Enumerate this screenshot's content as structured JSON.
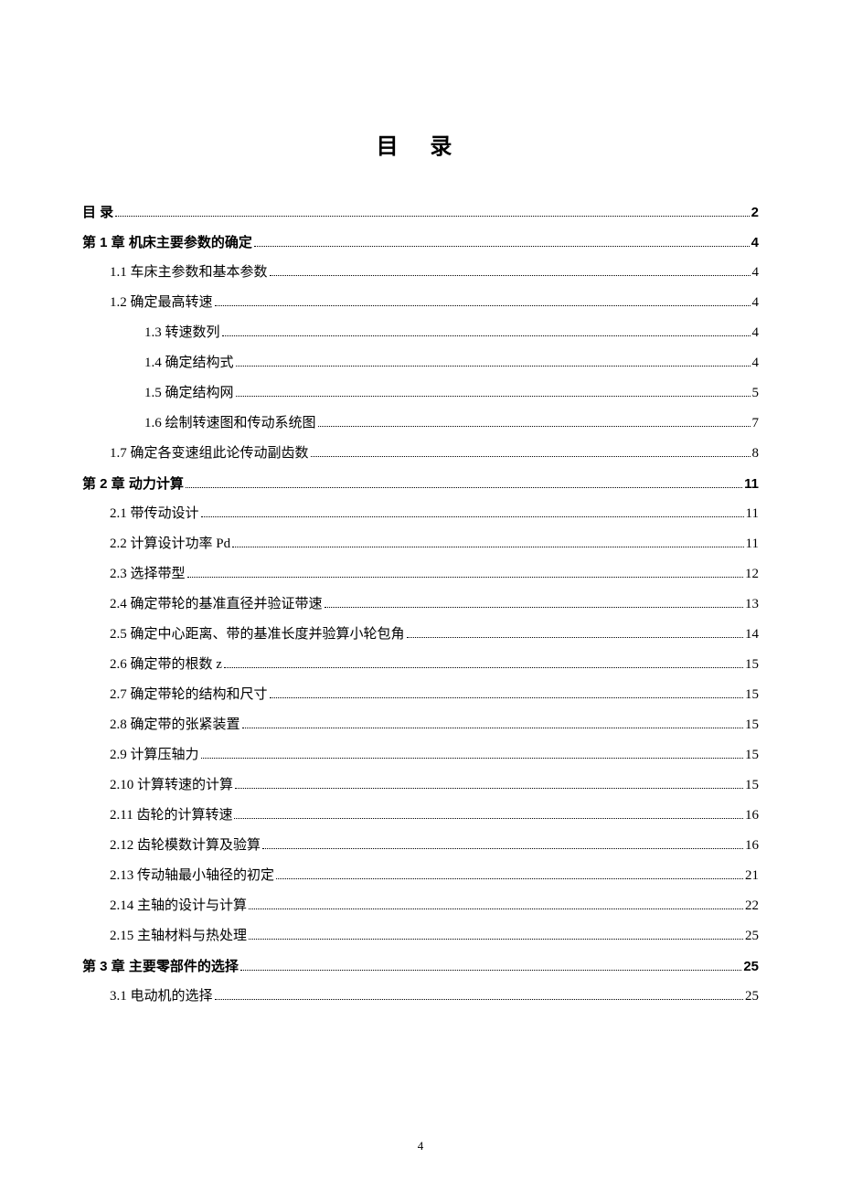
{
  "title": "目  录",
  "page_number": "4",
  "background_color": "#ffffff",
  "text_color": "#000000",
  "title_fontsize": 24,
  "body_fontsize": 15,
  "entries": [
    {
      "label": "目    录",
      "page": "2",
      "indent": 0,
      "bold": true
    },
    {
      "label": "第 1 章  机床主要参数的确定",
      "page": "4",
      "indent": 0,
      "bold": true
    },
    {
      "label": "1.1 车床主参数和基本参数",
      "page": "4",
      "indent": 1,
      "bold": false
    },
    {
      "label": "1.2  确定最高转速",
      "page": "4",
      "indent": 1,
      "bold": false
    },
    {
      "label": "1.3  转速数列",
      "page": "4",
      "indent": 2,
      "bold": false
    },
    {
      "label": "1.4 确定结构式",
      "page": "4",
      "indent": 2,
      "bold": false
    },
    {
      "label": "1.5  确定结构网",
      "page": "5",
      "indent": 2,
      "bold": false
    },
    {
      "label": "1.6  绘制转速图和传动系统图",
      "page": "7",
      "indent": 2,
      "bold": false
    },
    {
      "label": "1.7  确定各变速组此论传动副齿数",
      "page": "8",
      "indent": 1,
      "bold": false
    },
    {
      "label": "第 2 章  动力计算",
      "page": "11",
      "indent": 0,
      "bold": true
    },
    {
      "label": "2.1  带传动设计",
      "page": "11",
      "indent": 1,
      "bold": false
    },
    {
      "label": "2.2 计算设计功率 Pd ",
      "page": "11",
      "indent": 1,
      "bold": false
    },
    {
      "label": "2.3 选择带型",
      "page": "12",
      "indent": 1,
      "bold": false
    },
    {
      "label": "2.4 确定带轮的基准直径并验证带速",
      "page": "13",
      "indent": 1,
      "bold": false
    },
    {
      "label": "2.5 确定中心距离、带的基准长度并验算小轮包角",
      "page": "14",
      "indent": 1,
      "bold": false
    },
    {
      "label": "2.6 确定带的根数 z",
      "page": "15",
      "indent": 1,
      "bold": false
    },
    {
      "label": "2.7 确定带轮的结构和尺寸",
      "page": "15",
      "indent": 1,
      "bold": false
    },
    {
      "label": "2.8 确定带的张紧装置",
      "page": "15",
      "indent": 1,
      "bold": false
    },
    {
      "label": "2.9 计算压轴力",
      "page": "15",
      "indent": 1,
      "bold": false
    },
    {
      "label": "2.10  计算转速的计算",
      "page": "15",
      "indent": 1,
      "bold": false
    },
    {
      "label": "2.11 齿轮的计算转速",
      "page": "16",
      "indent": 1,
      "bold": false
    },
    {
      "label": "2.12  齿轮模数计算及验算",
      "page": "16",
      "indent": 1,
      "bold": false
    },
    {
      "label": "2.13  传动轴最小轴径的初定",
      "page": "21",
      "indent": 1,
      "bold": false
    },
    {
      "label": "2.14  主轴的设计与计算",
      "page": "22",
      "indent": 1,
      "bold": false
    },
    {
      "label": "2.15  主轴材料与热处理",
      "page": "25",
      "indent": 1,
      "bold": false
    },
    {
      "label": "第 3 章  主要零部件的选择",
      "page": "25",
      "indent": 0,
      "bold": true
    },
    {
      "label": "3.1 电动机的选择",
      "page": "25",
      "indent": 1,
      "bold": false
    }
  ]
}
